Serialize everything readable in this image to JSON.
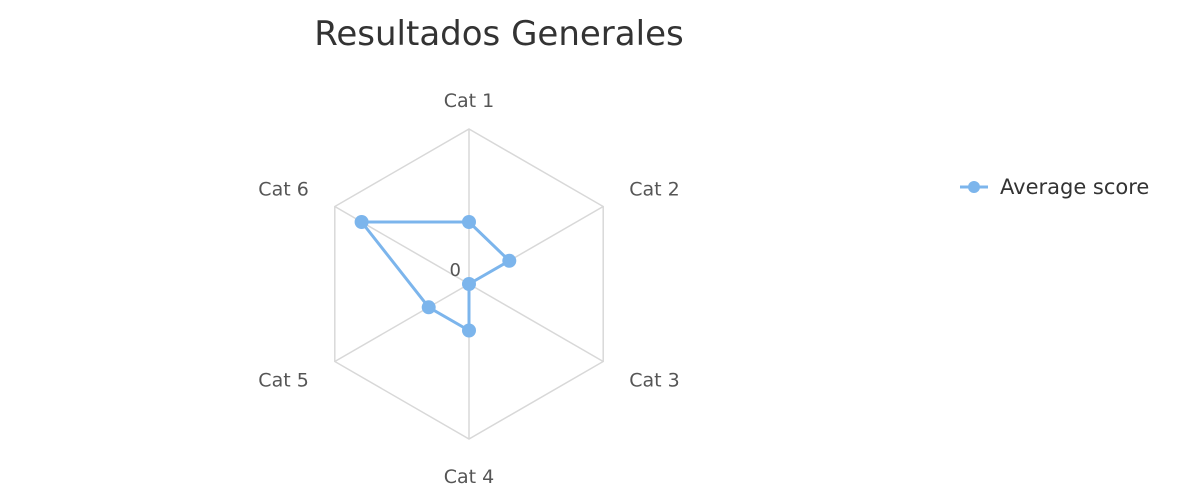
{
  "chart_data": {
    "type": "radar",
    "title": "Resultados Generales",
    "categories": [
      "Cat 1",
      "Cat 2",
      "Cat 3",
      "Cat 4",
      "Cat 5",
      "Cat 6"
    ],
    "radial_axis": {
      "min": 0,
      "max": 10,
      "tick_labels": [
        "0"
      ]
    },
    "series": [
      {
        "name": "Average score",
        "values": [
          4,
          3,
          0,
          3,
          3,
          8
        ],
        "color": "#7cb5ec"
      }
    ],
    "grid": true,
    "legend_position": "right"
  },
  "colors": {
    "series": "#7cb5ec",
    "grid": "#d8d8d8",
    "title": "#333333",
    "labels": "#555555"
  }
}
